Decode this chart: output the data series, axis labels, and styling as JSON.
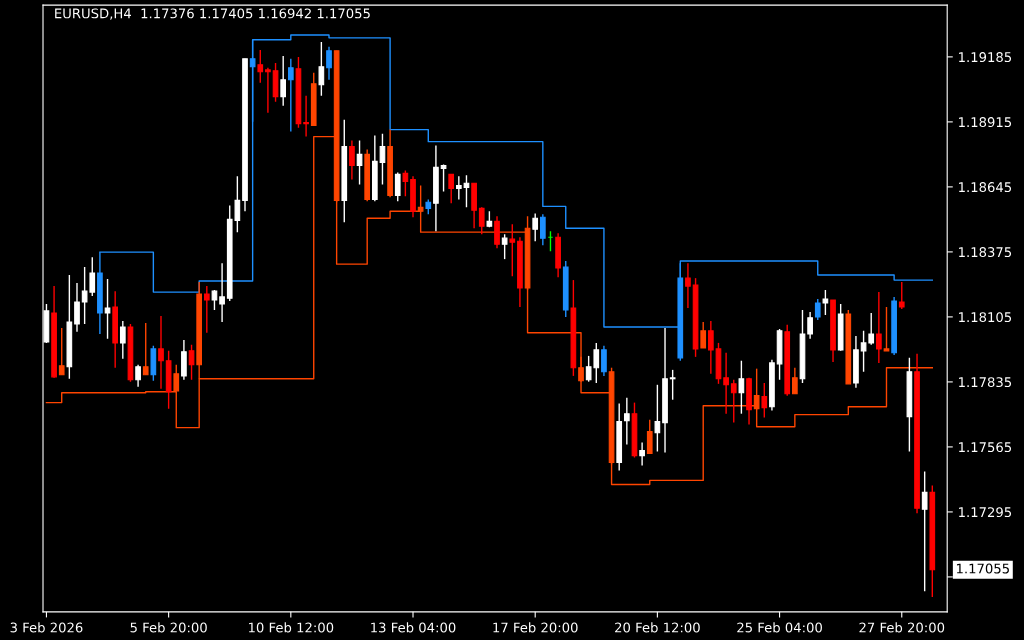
{
  "chart_data": {
    "type": "candlestick",
    "title": "EURUSD,H4  1.17376 1.17405 1.16942 1.17055",
    "categories": [
      "3 Feb 2026",
      null,
      null,
      null,
      null,
      null,
      null,
      null,
      null,
      null,
      null,
      null,
      null,
      null,
      null,
      null,
      "5 Feb 20:00",
      null,
      null,
      null,
      null,
      null,
      null,
      null,
      null,
      null,
      null,
      null,
      null,
      null,
      null,
      null,
      "10 Feb 12:00",
      null,
      null,
      null,
      null,
      null,
      null,
      null,
      null,
      null,
      null,
      null,
      null,
      null,
      null,
      null,
      "13 Feb 04:00",
      null,
      null,
      null,
      null,
      null,
      null,
      null,
      null,
      null,
      null,
      null,
      null,
      null,
      null,
      null,
      "17 Feb 20:00",
      null,
      null,
      null,
      null,
      null,
      null,
      null,
      null,
      null,
      null,
      null,
      null,
      null,
      null,
      null,
      "20 Feb 12:00",
      null,
      null,
      null,
      null,
      null,
      null,
      null,
      null,
      null,
      null,
      null,
      null,
      null,
      null,
      null,
      "25 Feb 04:00",
      null,
      null,
      null,
      null,
      null,
      null,
      null,
      null,
      null,
      null,
      null,
      null,
      null,
      null,
      null,
      "27 Feb 20:00",
      null,
      null,
      null,
      null
    ],
    "ohlc": [
      [
        1.18001,
        1.18159,
        1.17997,
        1.1813
      ],
      [
        1.18121,
        1.18233,
        1.17852,
        1.17856
      ],
      [
        1.17865,
        1.18059,
        1.17865,
        1.17902
      ],
      [
        1.17898,
        1.18279,
        1.17848,
        1.18084
      ],
      [
        1.18076,
        1.18246,
        1.18043,
        1.18167
      ],
      [
        1.18167,
        1.18312,
        1.18076,
        1.18212
      ],
      [
        1.18208,
        1.18353,
        1.18192,
        1.18287
      ],
      [
        1.18287,
        1.18374,
        1.18034,
        1.18121
      ],
      [
        1.18121,
        1.18262,
        1.18014,
        1.18142
      ],
      [
        1.18146,
        1.18212,
        1.17894,
        1.17997
      ],
      [
        1.17997,
        1.18088,
        1.17931,
        1.18063
      ],
      [
        1.18063,
        1.18076,
        1.17836,
        1.17844
      ],
      [
        1.17844,
        1.17906,
        1.17815,
        1.17898
      ],
      [
        1.17898,
        1.1808,
        1.17865,
        1.17865
      ],
      [
        1.17865,
        1.17985,
        1.1784,
        1.17972
      ],
      [
        1.17972,
        1.18109,
        1.17807,
        1.17923
      ],
      [
        1.17923,
        1.17964,
        1.17724,
        1.17794
      ],
      [
        1.17798,
        1.17906,
        1.17798,
        1.17869
      ],
      [
        1.1786,
        1.18009,
        1.17844,
        1.1796
      ],
      [
        1.17964,
        1.17989,
        1.17844,
        1.17906
      ],
      [
        1.17906,
        1.1825,
        1.17848,
        1.182
      ],
      [
        1.182,
        1.18233,
        1.18039,
        1.18175
      ],
      [
        1.18175,
        1.18217,
        1.18134,
        1.18212
      ],
      [
        1.18159,
        1.18328,
        1.18084,
        1.18188
      ],
      [
        1.18183,
        1.18568,
        1.18171,
        1.1851
      ],
      [
        1.18506,
        1.18689,
        1.18457,
        1.18589
      ],
      [
        1.18589,
        1.19177,
        1.18544,
        1.19177
      ],
      [
        1.19177,
        1.19256,
        1.18916,
        1.19144
      ],
      [
        1.19152,
        1.19214,
        1.19078,
        1.19123
      ],
      [
        1.19131,
        1.1914,
        1.18953,
        1.19123
      ],
      [
        1.19127,
        1.1916,
        1.18999,
        1.1902
      ],
      [
        1.1902,
        1.19189,
        1.18982,
        1.1909
      ],
      [
        1.1909,
        1.19177,
        1.18875,
        1.1914
      ],
      [
        1.19136,
        1.19185,
        1.18891,
        1.18908
      ],
      [
        1.18912,
        1.19024,
        1.18854,
        1.18908
      ],
      [
        1.189,
        1.19119,
        1.189,
        1.19073
      ],
      [
        1.19069,
        1.19247,
        1.19024,
        1.19144
      ],
      [
        1.1914,
        1.19227,
        1.1909,
        1.1921
      ],
      [
        1.1921,
        1.1921,
        1.18581,
        1.18589
      ],
      [
        1.18589,
        1.18924,
        1.18498,
        1.18813
      ],
      [
        1.18813,
        1.18838,
        1.18676,
        1.18734
      ],
      [
        1.18734,
        1.18838,
        1.18655,
        1.1878
      ],
      [
        1.1878,
        1.188,
        1.18585,
        1.18593
      ],
      [
        1.18593,
        1.18858,
        1.18585,
        1.18751
      ],
      [
        1.18747,
        1.18866,
        1.18655,
        1.18813
      ],
      [
        1.18813,
        1.18883,
        1.18602,
        1.1861
      ],
      [
        1.1861,
        1.18705,
        1.18585,
        1.18697
      ],
      [
        1.18701,
        1.18713,
        1.18606,
        1.18668
      ],
      [
        1.18676,
        1.18689,
        1.18519,
        1.18544
      ],
      [
        1.18544,
        1.18651,
        1.1854,
        1.1856
      ],
      [
        1.18556,
        1.18593,
        1.18531,
        1.18581
      ],
      [
        1.18577,
        1.18817,
        1.18461,
        1.18726
      ],
      [
        1.18722,
        1.18738,
        1.18626,
        1.18734
      ],
      [
        1.18697,
        1.18697,
        1.18577,
        1.18639
      ],
      [
        1.18639,
        1.18689,
        1.18593,
        1.18651
      ],
      [
        1.18643,
        1.18693,
        1.1856,
        1.1866
      ],
      [
        1.1866,
        1.1866,
        1.18473,
        1.18548
      ],
      [
        1.18556,
        1.1856,
        1.18448,
        1.18482
      ],
      [
        1.18482,
        1.18544,
        1.18477,
        1.18502
      ],
      [
        1.18502,
        1.18523,
        1.1839,
        1.18407
      ],
      [
        1.18407,
        1.18448,
        1.18345,
        1.18432
      ],
      [
        1.18428,
        1.1849,
        1.18274,
        1.18415
      ],
      [
        1.18419,
        1.18436,
        1.18146,
        1.18225
      ],
      [
        1.18225,
        1.18523,
        1.18217,
        1.18473
      ],
      [
        1.18469,
        1.18535,
        1.18419,
        1.18515
      ],
      [
        1.18519,
        1.18531,
        1.18403,
        1.18432
      ],
      [
        1.18436,
        1.18461,
        1.18378,
        1.18436
      ],
      [
        1.18436,
        1.18452,
        1.1827,
        1.18308
      ],
      [
        1.18312,
        1.18337,
        1.18105,
        1.18134
      ],
      [
        1.18142,
        1.18258,
        1.1786,
        1.17894
      ],
      [
        1.17894,
        1.17939,
        1.17836,
        1.1784
      ],
      [
        1.17844,
        1.17943,
        1.17836,
        1.17898
      ],
      [
        1.17894,
        1.17997,
        1.17831,
        1.17968
      ],
      [
        1.17968,
        1.17985,
        1.1786,
        1.17877
      ],
      [
        1.17877,
        1.17894,
        1.17492,
        1.175
      ],
      [
        1.175,
        1.17745,
        1.17467,
        1.1767
      ],
      [
        1.17674,
        1.17769,
        1.17575,
        1.17703
      ],
      [
        1.17703,
        1.17749,
        1.17521,
        1.17529
      ],
      [
        1.17529,
        1.17583,
        1.17488,
        1.1755
      ],
      [
        1.17538,
        1.17678,
        1.17538,
        1.17629
      ],
      [
        1.17624,
        1.17823,
        1.17546,
        1.1767
      ],
      [
        1.17666,
        1.18059,
        1.17542,
        1.17848
      ],
      [
        1.17848,
        1.17885,
        1.17761,
        1.17852
      ],
      [
        1.17935,
        1.18328,
        1.17923,
        1.18266
      ],
      [
        1.18266,
        1.18328,
        1.18142,
        1.18233
      ],
      [
        1.18237,
        1.18266,
        1.17939,
        1.17972
      ],
      [
        1.17976,
        1.18084,
        1.17976,
        1.18047
      ],
      [
        1.18047,
        1.18088,
        1.17869,
        1.17968
      ],
      [
        1.17972,
        1.17997,
        1.17827,
        1.17848
      ],
      [
        1.17852,
        1.17956,
        1.17703,
        1.17823
      ],
      [
        1.17827,
        1.17844,
        1.17666,
        1.1779
      ],
      [
        1.1779,
        1.17923,
        1.17703,
        1.17848
      ],
      [
        1.17848,
        1.17852,
        1.17658,
        1.1772
      ],
      [
        1.17724,
        1.1789,
        1.1772,
        1.17778
      ],
      [
        1.17774,
        1.17831,
        1.17687,
        1.17728
      ],
      [
        1.17732,
        1.17927,
        1.17716,
        1.17914
      ],
      [
        1.1791,
        1.18055,
        1.17844,
        1.18047
      ],
      [
        1.18043,
        1.18072,
        1.17778,
        1.17786
      ],
      [
        1.17786,
        1.17894,
        1.17786,
        1.17852
      ],
      [
        1.17848,
        1.18134,
        1.17831,
        1.18034
      ],
      [
        1.18034,
        1.18125,
        1.18014,
        1.18101
      ],
      [
        1.18105,
        1.18179,
        1.18092,
        1.18163
      ],
      [
        1.18163,
        1.18217,
        1.18113,
        1.18179
      ],
      [
        1.18175,
        1.18175,
        1.17918,
        1.17968
      ],
      [
        1.17968,
        1.18159,
        1.17964,
        1.18117
      ],
      [
        1.18117,
        1.18134,
        1.17827,
        1.17827
      ],
      [
        1.17831,
        1.18026,
        1.17811,
        1.17968
      ],
      [
        1.17964,
        1.18047,
        1.17877,
        1.17997
      ],
      [
        1.17997,
        1.18121,
        1.17989,
        1.18034
      ],
      [
        1.18034,
        1.18208,
        1.17914,
        1.17972
      ],
      [
        1.17972,
        1.18146,
        1.17964,
        1.17964
      ],
      [
        1.17956,
        1.18188,
        1.17947,
        1.18171
      ],
      [
        1.18167,
        1.1825,
        1.18138,
        1.18146
      ],
      [
        1.17691,
        1.17935,
        1.17546,
        1.17877
      ],
      [
        1.17877,
        1.17952,
        1.17289,
        1.1731
      ],
      [
        1.17306,
        1.17463,
        1.16966,
        1.17376
      ],
      [
        1.17376,
        1.17405,
        1.16942,
        1.17055
      ]
    ],
    "colors": [
      "#ffffff",
      "#ff0000",
      "#ff4500",
      "#ffffff",
      "#ffffff",
      "#ffffff",
      "#ffffff",
      "#1e90ff",
      "#ffffff",
      "#ff0000",
      "#ffffff",
      "#ff0000",
      "#ffffff",
      "#ff4500",
      "#1e90ff",
      "#ff0000",
      "#ff0000",
      "#ff4500",
      "#ffffff",
      "#ff0000",
      "#ff4500",
      "#ff0000",
      "#ffffff",
      "#ffffff",
      "#ffffff",
      "#ffffff",
      "#ffffff",
      "#1e90ff",
      "#ff0000",
      "#ff0000",
      "#ff0000",
      "#ffffff",
      "#1e90ff",
      "#ff0000",
      "#ff0000",
      "#ff4500",
      "#ffffff",
      "#1e90ff",
      "#ff4500",
      "#ffffff",
      "#ff0000",
      "#ffffff",
      "#ff4500",
      "#ffffff",
      "#ffffff",
      "#ff4500",
      "#ffffff",
      "#ff0000",
      "#ff0000",
      "#ff4500",
      "#1e90ff",
      "#ffffff",
      "#ffffff",
      "#ff0000",
      "#ffffff",
      "#ffffff",
      "#ff0000",
      "#ff0000",
      "#ffffff",
      "#ff0000",
      "#ffffff",
      "#ff0000",
      "#ff0000",
      "#ff4500",
      "#ffffff",
      "#1e90ff",
      "#00ff00",
      "#ff0000",
      "#1e90ff",
      "#ff0000",
      "#ff4500",
      "#ffffff",
      "#ffffff",
      "#1e90ff",
      "#ff4500",
      "#ffffff",
      "#ffffff",
      "#ff0000",
      "#ffffff",
      "#ff4500",
      "#ffffff",
      "#ffffff",
      "#ffffff",
      "#1e90ff",
      "#ff0000",
      "#ff0000",
      "#ff4500",
      "#ff0000",
      "#ff0000",
      "#ff0000",
      "#ff0000",
      "#ffffff",
      "#ff0000",
      "#ff4500",
      "#ff0000",
      "#ffffff",
      "#ffffff",
      "#ff0000",
      "#ff4500",
      "#ffffff",
      "#ffffff",
      "#1e90ff",
      "#ffffff",
      "#ff0000",
      "#ffffff",
      "#ff4500",
      "#ffffff",
      "#ffffff",
      "#ffffff",
      "#ff0000",
      "#ff4500",
      "#1e90ff",
      "#ff0000",
      "#ffffff",
      "#ff0000",
      "#ffffff",
      "#ff0000"
    ],
    "series": [
      {
        "type": "step",
        "color": "#1e90ff",
        "values": [
          null,
          null,
          null,
          null,
          null,
          null,
          null,
          1.18374,
          1.18374,
          1.18374,
          1.18374,
          1.18374,
          1.18374,
          1.18374,
          1.18208,
          1.18208,
          1.18208,
          1.18208,
          1.18208,
          1.18208,
          1.18254,
          1.18254,
          1.18254,
          1.18254,
          1.18254,
          1.18254,
          1.18254,
          1.19256,
          1.19256,
          1.19256,
          1.19256,
          1.19256,
          1.19276,
          1.19276,
          1.19276,
          1.19276,
          1.19276,
          1.19264,
          1.19264,
          1.19264,
          1.19264,
          1.19264,
          1.19264,
          1.19264,
          1.19264,
          1.18883,
          1.18883,
          1.18883,
          1.18883,
          1.18883,
          1.18833,
          1.18833,
          1.18833,
          1.18833,
          1.18833,
          1.18833,
          1.18833,
          1.18833,
          1.18833,
          1.18833,
          1.18833,
          1.18833,
          1.18833,
          1.18833,
          1.18833,
          1.18564,
          1.18564,
          1.18564,
          1.18473,
          1.18473,
          1.18473,
          1.18473,
          1.18473,
          1.18063,
          1.18063,
          1.18063,
          1.18063,
          1.18063,
          1.18063,
          1.18063,
          1.18063,
          1.18063,
          1.18063,
          1.18337,
          1.18337,
          1.18337,
          1.18337,
          1.18337,
          1.18337,
          1.18337,
          1.18337,
          1.18337,
          1.18337,
          1.18337,
          1.18337,
          1.18337,
          1.18337,
          1.18337,
          1.18337,
          1.18337,
          1.18337,
          1.18279,
          1.18279,
          1.18279,
          1.18279,
          1.18279,
          1.18279,
          1.18279,
          1.18279,
          1.18279,
          1.18279,
          1.18258,
          1.18258,
          1.18258,
          1.18258,
          1.18258,
          1.18258
        ]
      },
      {
        "type": "step",
        "color": "#ff4500",
        "values": [
          1.17749,
          1.17749,
          1.1779,
          1.1779,
          1.1779,
          1.1779,
          1.1779,
          1.1779,
          1.1779,
          1.1779,
          1.1779,
          1.1779,
          1.1779,
          1.17794,
          1.17794,
          1.17794,
          1.17794,
          1.17645,
          1.17645,
          1.17645,
          1.17848,
          1.17848,
          1.17848,
          1.17848,
          1.17848,
          1.17848,
          1.17848,
          1.17848,
          1.17848,
          1.17848,
          1.17848,
          1.17848,
          1.17848,
          1.17848,
          1.17848,
          1.18854,
          1.18854,
          1.18854,
          1.18324,
          1.18324,
          1.18324,
          1.18324,
          1.18515,
          1.18515,
          1.18515,
          1.18544,
          1.18544,
          1.18544,
          1.18544,
          1.18457,
          1.18457,
          1.18457,
          1.18457,
          1.18457,
          1.18457,
          1.18457,
          1.18457,
          1.18457,
          1.18457,
          1.18457,
          1.18457,
          1.18457,
          1.18457,
          1.18039,
          1.18039,
          1.18039,
          1.18039,
          1.18039,
          1.18039,
          1.18039,
          1.1779,
          1.1779,
          1.1779,
          1.1779,
          1.17409,
          1.17409,
          1.17409,
          1.17409,
          1.17409,
          1.17426,
          1.17426,
          1.17426,
          1.17426,
          1.17426,
          1.17426,
          1.17426,
          1.17736,
          1.17736,
          1.17736,
          1.17736,
          1.17736,
          1.17736,
          1.17736,
          1.17649,
          1.17649,
          1.17649,
          1.17649,
          1.17649,
          1.17699,
          1.17699,
          1.17699,
          1.17699,
          1.17699,
          1.17699,
          1.17699,
          1.17732,
          1.17732,
          1.17732,
          1.17732,
          1.17732,
          1.17894,
          1.17894,
          1.17894,
          1.17894,
          1.17894,
          1.17894,
          1.17894
        ]
      }
    ],
    "ylim": [
      1.1688,
      1.194
    ],
    "yticks": [
      {
        "value": 1.17025,
        "label": null
      },
      1.17295,
      1.17565,
      1.17835,
      1.18105,
      1.18375,
      1.18645,
      1.18915,
      1.19185
    ],
    "annotations": [
      "1.17055"
    ]
  }
}
